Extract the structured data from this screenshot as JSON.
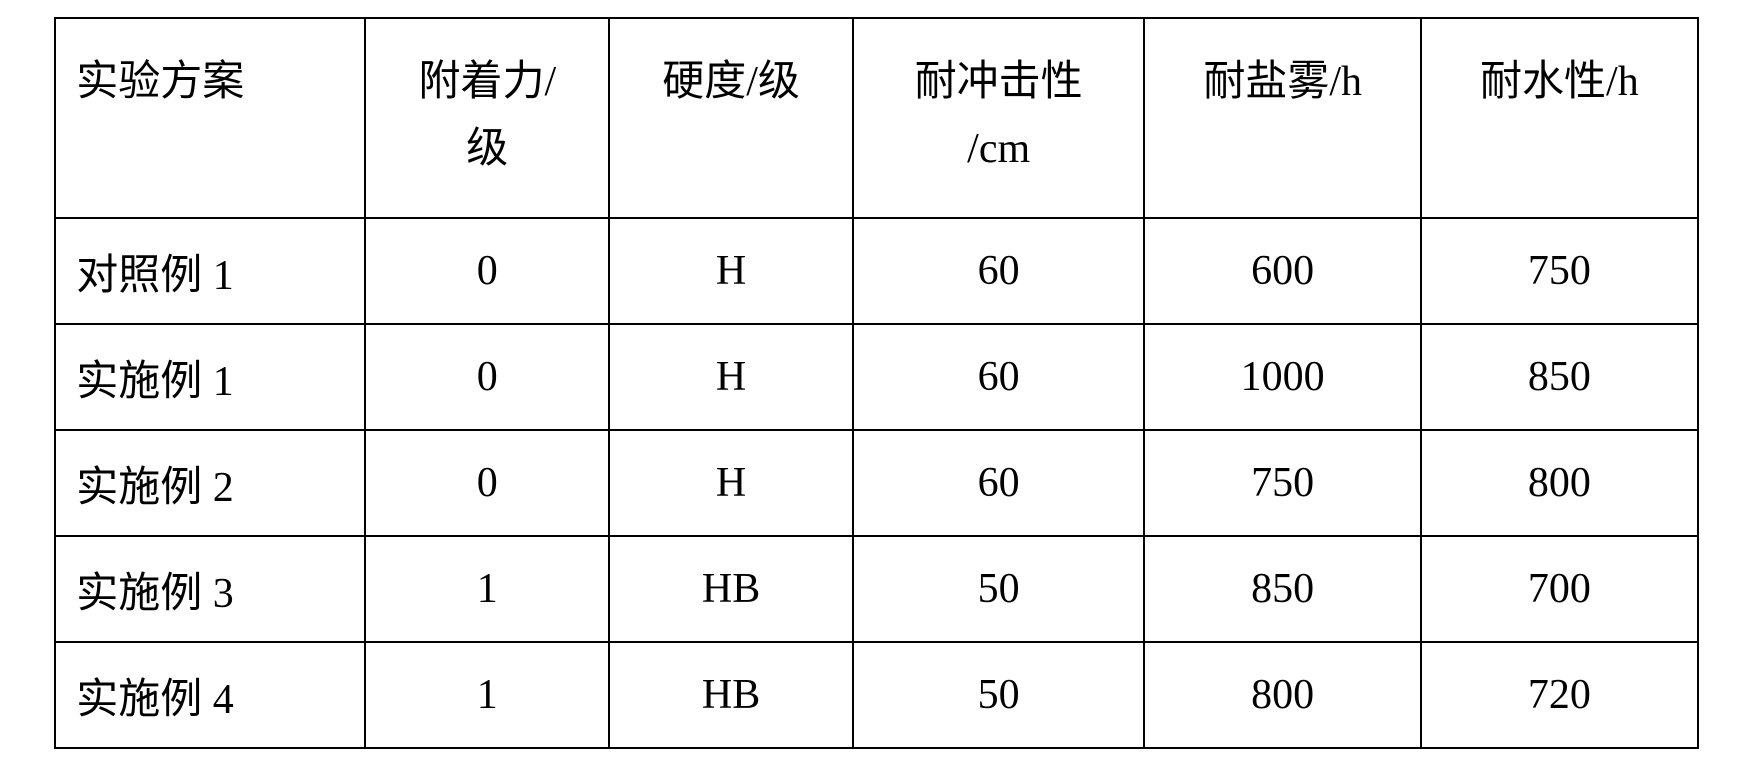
{
  "table": {
    "type": "table",
    "columns": [
      "实验方案",
      "附着力/\n级",
      "硬度/级",
      "耐冲击性\n/cm",
      "耐盐雾/h",
      "耐水性/h"
    ],
    "rows": [
      [
        "对照例 1",
        "0",
        "H",
        "60",
        "600",
        "750"
      ],
      [
        "实施例 1",
        "0",
        "H",
        "60",
        "1000",
        "850"
      ],
      [
        "实施例 2",
        "0",
        "H",
        "60",
        "750",
        "800"
      ],
      [
        "实施例 3",
        "1",
        "HB",
        "50",
        "850",
        "700"
      ],
      [
        "实施例 4",
        "1",
        "HB",
        "50",
        "800",
        "720"
      ]
    ],
    "styling": {
      "border_color": "#000000",
      "border_width": 2,
      "background_color": "#ffffff",
      "text_color": "#000000",
      "font_size": 42,
      "font_family": "SimSun",
      "header_row_height": 200,
      "data_row_height": 106,
      "column_count": 6,
      "first_column_align": "left",
      "other_columns_align": "center"
    }
  }
}
